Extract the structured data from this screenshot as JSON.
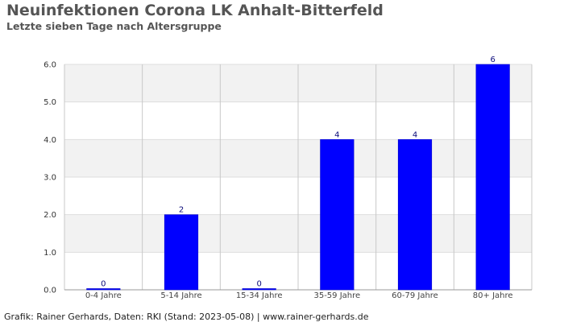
{
  "chart_data": {
    "type": "bar",
    "title": "Neuinfektionen Corona LK Anhalt-Bitterfeld",
    "subtitle": "Letzte sieben Tage nach Altersgruppe",
    "categories": [
      "0-4 Jahre",
      "5-14 Jahre",
      "15-34 Jahre",
      "35-59 Jahre",
      "60-79 Jahre",
      "80+ Jahre"
    ],
    "values": [
      0,
      2,
      0,
      4,
      4,
      6
    ],
    "data_labels": [
      "0",
      "2",
      "0",
      "4",
      "4",
      "6"
    ],
    "yticks": [
      "0.0",
      "1.0",
      "2.0",
      "3.0",
      "4.0",
      "5.0",
      "6.0"
    ],
    "ylim": [
      0,
      6
    ],
    "xlabel": "",
    "ylabel": "",
    "bar_color": "#0000ff",
    "grid": true,
    "legend": "none"
  },
  "footer": "Grafik: Rainer Gerhards, Daten: RKI (Stand: 2023-05-08) | www.rainer-gerhards.de"
}
